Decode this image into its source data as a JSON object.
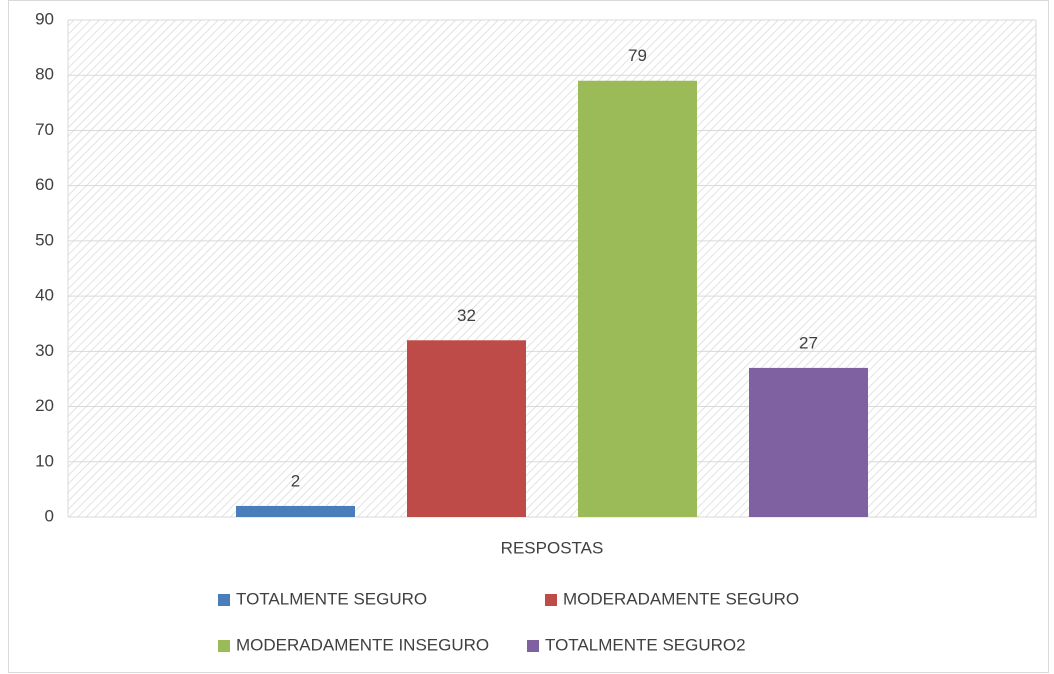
{
  "chart_data": {
    "type": "bar",
    "categories": [
      "RESPOSTAS"
    ],
    "series": [
      {
        "name": "TOTALMENTE SEGURO",
        "color": "#4a7ebb",
        "values": [
          2
        ]
      },
      {
        "name": "MODERADAMENTE SEGURO",
        "color": "#be4b48",
        "values": [
          32
        ]
      },
      {
        "name": "MODERADAMENTE INSEGURO",
        "color": "#9bbb59",
        "values": [
          79
        ]
      },
      {
        "name": "TOTALMENTE SEGURO2",
        "color": "#7f60a0",
        "values": [
          27
        ]
      }
    ],
    "ylim": [
      0,
      90
    ],
    "yticks": [
      0,
      10,
      20,
      30,
      40,
      50,
      60,
      70,
      80,
      90
    ],
    "grid": true,
    "legend": "bottom",
    "data_labels": true
  }
}
